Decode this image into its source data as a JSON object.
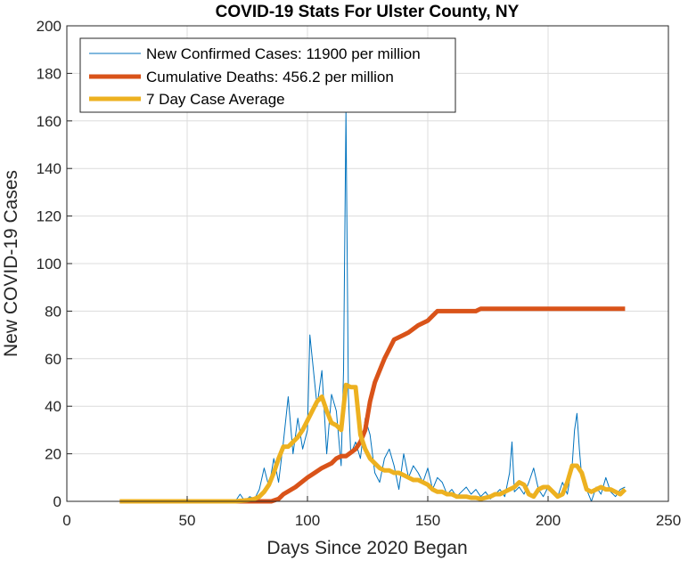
{
  "chart_data": {
    "type": "line",
    "title": "COVID-19 Stats For Ulster County, NY",
    "xlabel": "Days Since 2020 Began",
    "ylabel": "New COVID-19 Cases",
    "xlim": [
      0,
      250
    ],
    "ylim": [
      0,
      200
    ],
    "xticks": [
      0,
      50,
      100,
      150,
      200,
      250
    ],
    "yticks": [
      0,
      20,
      40,
      60,
      80,
      100,
      120,
      140,
      160,
      180,
      200
    ],
    "grid": true,
    "legend_position": "top-left",
    "series": [
      {
        "name": "New Confirmed Cases: 11900 per million",
        "color": "#0072BD",
        "line_width": "thin",
        "x": [
          22,
          30,
          40,
          50,
          60,
          68,
          70,
          72,
          74,
          76,
          78,
          80,
          82,
          84,
          86,
          88,
          90,
          92,
          94,
          96,
          98,
          100,
          101,
          102,
          104,
          106,
          108,
          110,
          112,
          114,
          115,
          116,
          117,
          118,
          120,
          122,
          124,
          126,
          128,
          130,
          132,
          134,
          136,
          138,
          140,
          142,
          144,
          146,
          148,
          150,
          152,
          154,
          156,
          158,
          160,
          162,
          164,
          166,
          168,
          170,
          172,
          174,
          176,
          178,
          180,
          182,
          184,
          185,
          186,
          188,
          190,
          192,
          194,
          196,
          198,
          200,
          202,
          204,
          206,
          208,
          210,
          211,
          212,
          213,
          214,
          216,
          218,
          220,
          222,
          224,
          226,
          228,
          230,
          232
        ],
        "y": [
          0,
          0,
          0,
          0,
          0,
          0,
          0,
          3,
          0,
          2,
          1,
          5,
          14,
          6,
          18,
          8,
          25,
          44,
          20,
          35,
          22,
          30,
          70,
          60,
          40,
          55,
          20,
          45,
          38,
          15,
          55,
          164,
          45,
          20,
          25,
          18,
          35,
          28,
          12,
          8,
          18,
          22,
          15,
          5,
          20,
          10,
          15,
          12,
          8,
          14,
          5,
          10,
          8,
          3,
          5,
          2,
          4,
          6,
          3,
          5,
          2,
          4,
          1,
          3,
          5,
          2,
          12,
          25,
          4,
          6,
          3,
          8,
          14,
          5,
          2,
          6,
          4,
          2,
          8,
          3,
          15,
          30,
          37,
          22,
          10,
          5,
          0,
          6,
          3,
          10,
          4,
          2,
          5,
          6
        ]
      },
      {
        "name": "Cumulative Deaths: 456.2 per million",
        "color": "#D95319",
        "line_width": "thick",
        "x": [
          22,
          50,
          70,
          85,
          88,
          90,
          95,
          100,
          103,
          106,
          110,
          112,
          114,
          116,
          120,
          122,
          124,
          126,
          128,
          130,
          132,
          134,
          136,
          138,
          140,
          142,
          146,
          150,
          152,
          154,
          158,
          160,
          165,
          170,
          172,
          180,
          200,
          220,
          232
        ],
        "y": [
          0,
          0,
          0,
          0,
          1,
          3,
          6,
          10,
          12,
          14,
          16,
          18,
          19,
          19,
          22,
          25,
          30,
          42,
          50,
          55,
          60,
          64,
          68,
          69,
          70,
          71,
          74,
          76,
          78,
          80,
          80,
          80,
          80,
          80,
          81,
          81,
          81,
          81,
          81
        ]
      },
      {
        "name": "7 Day Case Average",
        "color": "#EDB120",
        "line_width": "thick",
        "x": [
          22,
          40,
          60,
          70,
          75,
          78,
          80,
          82,
          84,
          86,
          88,
          90,
          92,
          94,
          96,
          98,
          100,
          102,
          104,
          106,
          108,
          110,
          112,
          114,
          116,
          118,
          120,
          122,
          124,
          126,
          128,
          130,
          132,
          134,
          136,
          138,
          140,
          142,
          144,
          146,
          148,
          150,
          152,
          154,
          156,
          158,
          160,
          162,
          164,
          166,
          168,
          170,
          172,
          174,
          176,
          178,
          180,
          182,
          184,
          186,
          188,
          190,
          192,
          194,
          196,
          198,
          200,
          202,
          204,
          206,
          208,
          210,
          212,
          214,
          216,
          218,
          220,
          222,
          224,
          226,
          228,
          230,
          232
        ],
        "y": [
          0,
          0,
          0,
          0,
          0.5,
          1,
          2,
          4,
          7,
          12,
          18,
          23,
          23,
          25,
          27,
          30,
          34,
          38,
          42,
          44,
          38,
          33,
          32,
          30,
          49,
          48,
          48,
          28,
          22,
          18,
          16,
          14,
          13,
          13,
          12,
          12,
          11,
          10,
          9,
          9,
          8,
          7,
          5,
          4,
          4,
          3,
          3,
          2,
          2,
          2,
          1.5,
          1.5,
          1,
          1.5,
          2,
          3,
          3,
          4,
          5,
          6,
          8,
          7,
          3,
          2,
          5,
          6,
          6,
          4,
          2,
          3,
          8,
          15,
          15,
          12,
          5,
          4,
          5,
          6,
          5,
          5,
          4,
          3,
          5
        ]
      }
    ]
  }
}
